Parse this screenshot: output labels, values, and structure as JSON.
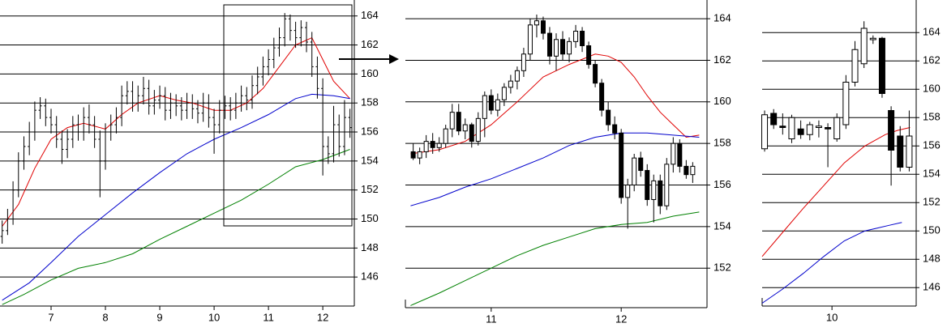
{
  "chart_data": [
    {
      "type": "ohlc",
      "color": "#000000",
      "x": [
        6.1,
        6.2,
        6.3,
        6.4,
        6.5,
        6.6,
        6.7,
        6.8,
        6.9,
        7.0,
        7.1,
        7.2,
        7.3,
        7.4,
        7.5,
        7.6,
        7.7,
        7.8,
        7.9,
        8.0,
        8.1,
        8.2,
        8.3,
        8.4,
        8.5,
        8.6,
        8.7,
        8.8,
        8.9,
        9.0,
        9.1,
        9.2,
        9.3,
        9.4,
        9.5,
        9.6,
        9.7,
        9.8,
        9.9,
        10.0,
        10.1,
        10.2,
        10.3,
        10.4,
        10.5,
        10.6,
        10.7,
        10.8,
        10.9,
        11.0,
        11.1,
        11.2,
        11.3,
        11.4,
        11.5,
        11.6,
        11.7,
        11.8,
        11.9,
        12.0,
        12.1,
        12.2,
        12.3,
        12.4,
        12.5
      ],
      "ohlc": [
        [
          148.8,
          149.9,
          148.3,
          149.2
        ],
        [
          149.2,
          150.7,
          148.9,
          150
        ],
        [
          150,
          152.6,
          149.6,
          152
        ],
        [
          152,
          154.6,
          151.5,
          154
        ],
        [
          154,
          155.7,
          153.4,
          155
        ],
        [
          155,
          156.7,
          154.4,
          156
        ],
        [
          156,
          158.1,
          155.4,
          157.5
        ],
        [
          157.5,
          158.4,
          156.9,
          157.8
        ],
        [
          157.8,
          158.3,
          156.4,
          157
        ],
        [
          157,
          157.6,
          155.9,
          156.5
        ],
        [
          156.5,
          157.1,
          154.9,
          155.5
        ],
        [
          155.5,
          156.1,
          153.8,
          154.8
        ],
        [
          154.8,
          156.2,
          154.2,
          155.5
        ],
        [
          155.5,
          157.1,
          154.9,
          156.5
        ],
        [
          156.5,
          157.2,
          155.4,
          156
        ],
        [
          156,
          157.7,
          155.4,
          157
        ],
        [
          157,
          157.9,
          155.9,
          156.5
        ],
        [
          156.5,
          157.1,
          154.9,
          155.5
        ],
        [
          155.5,
          156.1,
          151.5,
          154
        ],
        [
          154,
          156.6,
          153.4,
          156
        ],
        [
          156,
          157.2,
          155.4,
          156.5
        ],
        [
          156.5,
          157.7,
          155.9,
          157
        ],
        [
          157,
          159.2,
          156.4,
          158.5
        ],
        [
          158.5,
          159.5,
          157.9,
          158.8
        ],
        [
          158.8,
          159.5,
          157.4,
          158
        ],
        [
          158,
          159.2,
          157.4,
          158.5
        ],
        [
          158.5,
          159.8,
          157.9,
          159
        ],
        [
          159,
          159.6,
          157.2,
          157.8
        ],
        [
          157.8,
          158.9,
          157.2,
          158.2
        ],
        [
          158.2,
          159.2,
          157.6,
          158.5
        ],
        [
          158.5,
          159.1,
          156.8,
          157.5
        ],
        [
          157.5,
          158.7,
          156.9,
          158
        ],
        [
          158,
          158.6,
          157.1,
          157.8
        ],
        [
          157.8,
          158.4,
          156.8,
          157.5
        ],
        [
          157.5,
          158.7,
          156.9,
          158
        ],
        [
          158,
          158.6,
          156.9,
          157.6
        ],
        [
          157.6,
          158.2,
          156.6,
          157.3
        ],
        [
          157.3,
          158.7,
          156.7,
          158
        ],
        [
          158,
          158.6,
          156.3,
          157
        ],
        [
          157,
          157.6,
          154.5,
          156.5
        ],
        [
          156.5,
          158.2,
          155.9,
          157.5
        ],
        [
          157.5,
          158.5,
          156.9,
          157.8
        ],
        [
          157.8,
          158.4,
          156.8,
          157.5
        ],
        [
          157.5,
          158.7,
          156.9,
          158
        ],
        [
          158,
          159.2,
          157.4,
          158.5
        ],
        [
          158.5,
          159.1,
          157.5,
          158.2
        ],
        [
          158.2,
          159.9,
          157.6,
          159.2
        ],
        [
          159.2,
          160.5,
          158.6,
          159.8
        ],
        [
          159.8,
          161.2,
          159.2,
          160.5
        ],
        [
          160.5,
          161.7,
          159.9,
          161
        ],
        [
          161,
          162.5,
          160.4,
          161.8
        ],
        [
          161.8,
          163.2,
          161.2,
          162.5
        ],
        [
          162.5,
          164.2,
          161.9,
          163.8
        ],
        [
          163.8,
          164.1,
          162.3,
          163
        ],
        [
          163,
          163.6,
          161.8,
          162.5
        ],
        [
          162.5,
          163.7,
          161.9,
          163.2
        ],
        [
          163.2,
          163.6,
          161.5,
          162.2
        ],
        [
          162.2,
          162.9,
          159.8,
          160.5
        ],
        [
          160.5,
          161.2,
          158.3,
          159
        ],
        [
          159,
          159.7,
          153,
          155
        ],
        [
          155,
          155.7,
          153.8,
          154.5
        ],
        [
          154.5,
          157.8,
          153.9,
          156.5
        ],
        [
          156.5,
          157.2,
          154.3,
          155
        ],
        [
          155,
          158.2,
          154.4,
          157
        ],
        [
          157,
          157.6,
          155.6,
          156.3
        ]
      ],
      "lines": [
        {
          "color": "#e00000",
          "x": [
            6.1,
            6.4,
            6.7,
            7.0,
            7.3,
            7.6,
            8.0,
            8.3,
            8.6,
            9.0,
            9.3,
            9.6,
            10.0,
            10.3,
            10.6,
            10.9,
            11.2,
            11.5,
            11.8,
            12.0,
            12.2,
            12.5
          ],
          "values": [
            149.5,
            151,
            153.5,
            155.5,
            156.3,
            156.6,
            156.2,
            157.2,
            158,
            158.5,
            158.2,
            158,
            157.5,
            157.5,
            158,
            159,
            160.5,
            162,
            162.5,
            161,
            159.5,
            158.3
          ]
        },
        {
          "color": "#0000cc",
          "x": [
            6.1,
            6.6,
            7.0,
            7.5,
            8.0,
            8.5,
            9.0,
            9.5,
            10.0,
            10.5,
            11.0,
            11.5,
            11.8,
            12.2,
            12.5
          ],
          "values": [
            144.4,
            145.6,
            147,
            148.8,
            150.3,
            151.8,
            153.2,
            154.5,
            155.5,
            156.3,
            157.2,
            158.3,
            158.6,
            158.5,
            158.3
          ]
        },
        {
          "color": "#008000",
          "x": [
            6.1,
            6.5,
            7.0,
            7.5,
            8.0,
            8.5,
            9.0,
            9.5,
            10.0,
            10.5,
            11.0,
            11.5,
            12.0,
            12.5
          ],
          "values": [
            144.1,
            144.8,
            145.8,
            146.6,
            147,
            147.6,
            148.6,
            149.5,
            150.4,
            151.3,
            152.4,
            153.6,
            154.1,
            154.8
          ]
        }
      ],
      "xlim": [
        6.06,
        12.58
      ],
      "xticks": [
        7,
        8,
        9,
        10,
        11,
        12
      ],
      "ylim": [
        144,
        165.1
      ],
      "yticks": [
        146,
        148,
        150,
        152,
        154,
        156,
        158,
        160,
        162,
        164
      ],
      "grid": true
    },
    {
      "type": "candlestick",
      "color": "#000000",
      "x": [
        10.4,
        10.45,
        10.5,
        10.55,
        10.6,
        10.65,
        10.7,
        10.75,
        10.8,
        10.85,
        10.9,
        10.95,
        11.0,
        11.05,
        11.1,
        11.15,
        11.2,
        11.25,
        11.3,
        11.35,
        11.4,
        11.45,
        11.5,
        11.55,
        11.6,
        11.65,
        11.7,
        11.75,
        11.8,
        11.85,
        11.9,
        11.95,
        12.0,
        12.05,
        12.1,
        12.15,
        12.2,
        12.25,
        12.3,
        12.35,
        12.4,
        12.45,
        12.5,
        12.55
      ],
      "ohlc": [
        [
          157.6,
          158,
          157.2,
          157.3
        ],
        [
          157.3,
          157.8,
          157,
          157.6
        ],
        [
          157.6,
          158.4,
          157.3,
          158.1
        ],
        [
          158.1,
          158.5,
          157.5,
          157.8
        ],
        [
          157.8,
          158.3,
          157.6,
          158
        ],
        [
          158,
          158.9,
          157.8,
          158.7
        ],
        [
          158.7,
          159.9,
          158.3,
          159.5
        ],
        [
          159.5,
          159.9,
          158.4,
          158.6
        ],
        [
          158.6,
          159.2,
          158.2,
          158.9
        ],
        [
          158.9,
          159,
          157.8,
          158.1
        ],
        [
          158.1,
          159.5,
          157.9,
          159.2
        ],
        [
          159.2,
          160.5,
          158.3,
          160.3
        ],
        [
          160.3,
          160.6,
          159.4,
          159.6
        ],
        [
          159.6,
          160.4,
          159.3,
          160.1
        ],
        [
          160.1,
          160.9,
          159.8,
          160.7
        ],
        [
          160.7,
          161.3,
          160.4,
          161
        ],
        [
          161,
          161.7,
          160.6,
          161.5
        ],
        [
          161.5,
          162.6,
          161.2,
          162.3
        ],
        [
          162.3,
          164,
          162,
          163.7
        ],
        [
          163.7,
          164.2,
          163.1,
          163.9
        ],
        [
          163.9,
          164.1,
          163,
          163.3
        ],
        [
          163.3,
          163.6,
          161.8,
          162.2
        ],
        [
          162.2,
          163.3,
          161.5,
          163
        ],
        [
          163,
          163.4,
          162,
          162.3
        ],
        [
          162.3,
          163.1,
          161.9,
          162.9
        ],
        [
          162.9,
          163.7,
          162.6,
          163.4
        ],
        [
          163.4,
          163.6,
          162.4,
          162.7
        ],
        [
          162.7,
          162.9,
          161.6,
          161.8
        ],
        [
          161.8,
          162,
          160.7,
          160.9
        ],
        [
          160.9,
          161.1,
          159.3,
          159.6
        ],
        [
          159.6,
          160,
          158.6,
          158.9
        ],
        [
          158.9,
          159.3,
          158.2,
          158.5
        ],
        [
          158.5,
          158.7,
          155.1,
          155.4
        ],
        [
          155.4,
          156.3,
          153.9,
          156
        ],
        [
          156,
          157.5,
          155.7,
          157.3
        ],
        [
          157.3,
          157.6,
          156.4,
          156.7
        ],
        [
          156.7,
          157,
          155,
          155.3
        ],
        [
          155.3,
          156.5,
          154.2,
          156.2
        ],
        [
          156.2,
          156.5,
          154.6,
          155
        ],
        [
          155,
          157.3,
          154.8,
          157
        ],
        [
          157,
          158.3,
          156.6,
          158
        ],
        [
          158,
          158.2,
          156.6,
          156.9
        ],
        [
          156.9,
          157.2,
          156.3,
          156.5
        ],
        [
          156.5,
          157.1,
          156.1,
          156.9
        ]
      ],
      "lines": [
        {
          "color": "#e00000",
          "x": [
            10.38,
            10.6,
            10.8,
            11.0,
            11.2,
            11.4,
            11.6,
            11.8,
            11.9,
            12.0,
            12.1,
            12.2,
            12.3,
            12.4,
            12.5,
            12.6
          ],
          "values": [
            157.5,
            157.7,
            158.1,
            158.9,
            160,
            161.2,
            161.8,
            162.3,
            162.2,
            161.9,
            161.2,
            160.3,
            159.5,
            158.9,
            158.3,
            158.4
          ]
        },
        {
          "color": "#0000cc",
          "x": [
            10.38,
            10.6,
            10.8,
            11.0,
            11.2,
            11.4,
            11.6,
            11.8,
            12.0,
            12.2,
            12.4,
            12.6
          ],
          "values": [
            155,
            155.4,
            155.9,
            156.3,
            156.8,
            157.3,
            157.9,
            158.3,
            158.5,
            158.5,
            158.4,
            158.3
          ]
        },
        {
          "color": "#008000",
          "x": [
            10.38,
            10.6,
            10.8,
            11.0,
            11.2,
            11.4,
            11.6,
            11.8,
            12.0,
            12.2,
            12.4,
            12.6
          ],
          "values": [
            150.2,
            150.8,
            151.4,
            152,
            152.6,
            153.1,
            153.5,
            153.9,
            154.1,
            154.2,
            154.5,
            154.7
          ]
        }
      ],
      "xlim": [
        10.34,
        12.66
      ],
      "xticks": [
        11,
        12
      ],
      "ylim": [
        150.1,
        164.9
      ],
      "yticks": [
        152,
        154,
        156,
        158,
        160,
        162,
        164
      ],
      "grid": true
    },
    {
      "type": "candlestick",
      "color": "#000000",
      "x": [
        8.36,
        8.58,
        8.8,
        9.02,
        9.24,
        9.46,
        9.68,
        9.9,
        10.12,
        10.34,
        10.56,
        10.78,
        11.0,
        11.22,
        11.44,
        11.66,
        11.88
      ],
      "ohlc": [
        [
          155.8,
          158.5,
          155.6,
          158.2
        ],
        [
          158.3,
          158.6,
          157.2,
          157.5
        ],
        [
          157.4,
          158.3,
          156.8,
          157.3
        ],
        [
          156.5,
          158.2,
          156.2,
          158
        ],
        [
          157.2,
          157.8,
          156.5,
          156.8
        ],
        [
          156.8,
          157.7,
          156.4,
          157.5
        ],
        [
          157.3,
          157.8,
          156.6,
          157.4
        ],
        [
          157.3,
          157.6,
          154.5,
          157.2
        ],
        [
          156.5,
          158.3,
          156.3,
          158
        ],
        [
          157.5,
          161,
          157.2,
          160.5
        ],
        [
          160.5,
          163.4,
          160.2,
          162.8
        ],
        [
          161.8,
          164.8,
          161.5,
          164.3
        ],
        [
          163.5,
          163.8,
          163.2,
          163.6
        ],
        [
          163.6,
          163.7,
          159.4,
          159.7
        ],
        [
          158.5,
          158.8,
          153.2,
          155.7
        ],
        [
          156.7,
          157.4,
          154.2,
          154.5
        ],
        [
          154.5,
          158.5,
          154.2,
          156.7
        ]
      ],
      "lines": [
        {
          "color": "#e00000",
          "x": [
            8.3,
            8.8,
            9.3,
            9.8,
            10.3,
            10.8,
            11.3,
            11.6,
            11.9
          ],
          "values": [
            148.2,
            149.9,
            151.6,
            153.2,
            154.8,
            156,
            156.8,
            157.1,
            157.3
          ]
        },
        {
          "color": "#0000cc",
          "x": [
            8.3,
            8.8,
            9.3,
            9.8,
            10.3,
            10.8,
            11.1,
            11.4,
            11.7
          ],
          "values": [
            144.9,
            145.9,
            147,
            148.2,
            149.3,
            150,
            150.2,
            150.4,
            150.6
          ]
        }
      ],
      "xlim": [
        8.3,
        12.05
      ],
      "xticks": [
        10
      ],
      "ylim": [
        144.7,
        166.3
      ],
      "yticks": [
        146,
        148,
        150,
        152,
        154,
        156,
        158,
        160,
        162,
        164
      ],
      "grid": true
    }
  ]
}
